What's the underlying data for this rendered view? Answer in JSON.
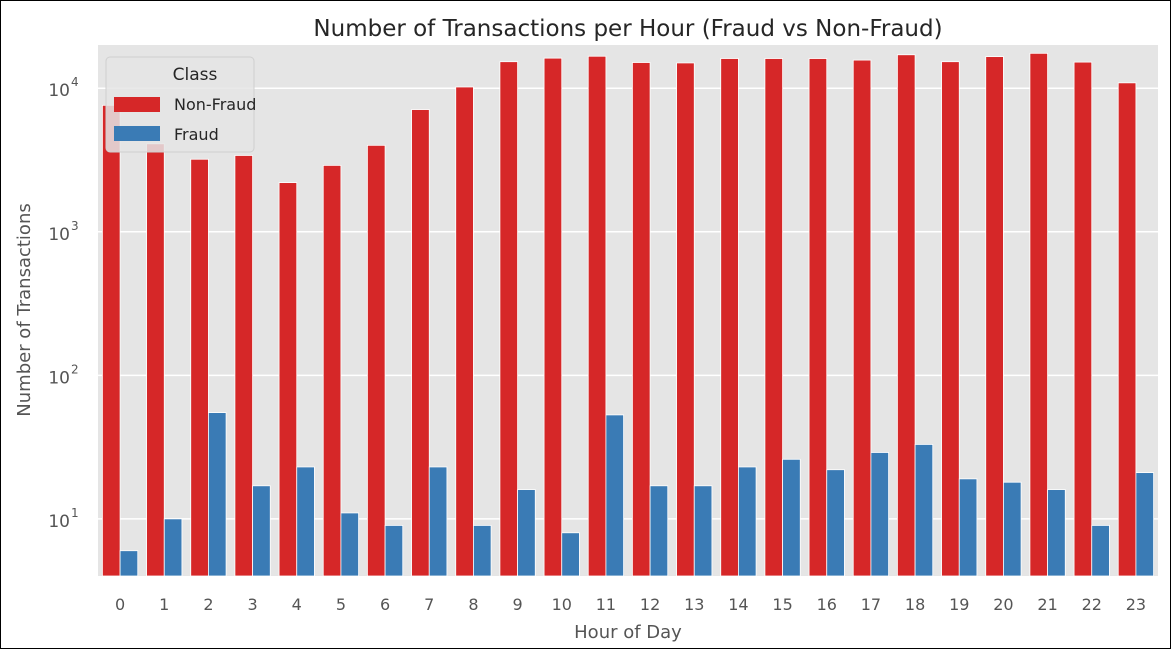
{
  "chart_data": {
    "type": "bar",
    "title": "Number of Transactions per Hour (Fraud vs Non-Fraud)",
    "xlabel": "Hour of Day",
    "ylabel": "Number of Transactions",
    "yscale": "log",
    "ylim": [
      4,
      20000
    ],
    "y_ticks": [
      {
        "base": "10",
        "exp": "1",
        "value": 10
      },
      {
        "base": "10",
        "exp": "2",
        "value": 100
      },
      {
        "base": "10",
        "exp": "3",
        "value": 1000
      },
      {
        "base": "10",
        "exp": "4",
        "value": 10000
      }
    ],
    "grid": true,
    "legend": {
      "title": "Class",
      "position": "top-left"
    },
    "categories": [
      "0",
      "1",
      "2",
      "3",
      "4",
      "5",
      "6",
      "7",
      "8",
      "9",
      "10",
      "11",
      "12",
      "13",
      "14",
      "15",
      "16",
      "17",
      "18",
      "19",
      "20",
      "21",
      "22",
      "23"
    ],
    "series": [
      {
        "name": "Non-Fraud",
        "color": "#d62728",
        "values": [
          7600,
          4100,
          3200,
          3400,
          2200,
          2900,
          4000,
          7100,
          10200,
          15300,
          16200,
          16700,
          15100,
          15000,
          16100,
          16100,
          16100,
          15700,
          17100,
          15300,
          16600,
          17500,
          15200,
          10900
        ]
      },
      {
        "name": "Fraud",
        "color": "#3a7bb5",
        "values": [
          6,
          10,
          55,
          17,
          23,
          11,
          9,
          23,
          9,
          16,
          8,
          53,
          17,
          17,
          23,
          26,
          22,
          29,
          33,
          19,
          18,
          16,
          9,
          21
        ]
      }
    ]
  }
}
